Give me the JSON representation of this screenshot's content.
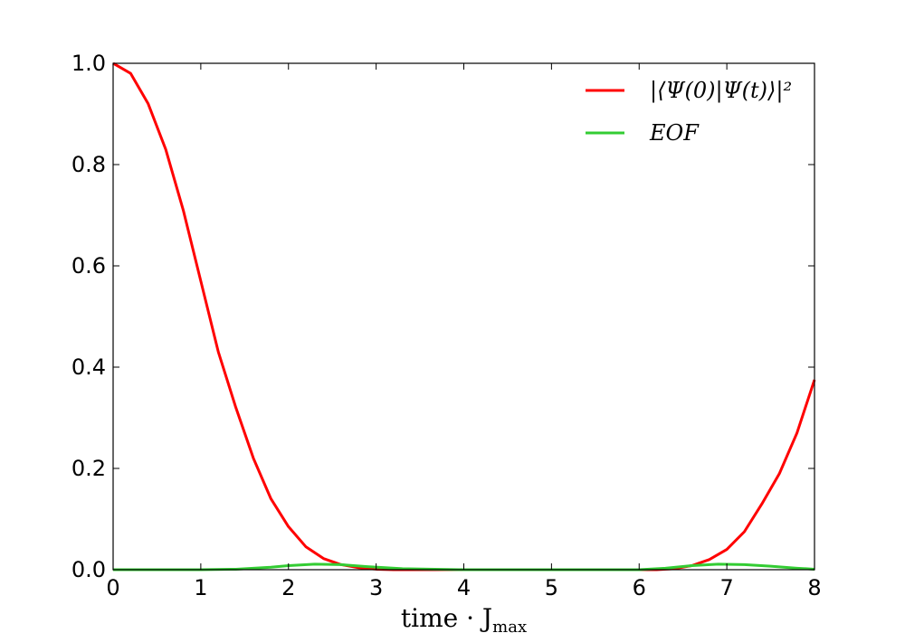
{
  "chart_data": {
    "type": "line",
    "xlabel": "time · J_max",
    "xlabel_main": "time · J",
    "xlabel_sub": "max",
    "ylabel": "",
    "xlim": [
      0,
      8
    ],
    "ylim": [
      0,
      1.0
    ],
    "xticks": [
      "0",
      "1",
      "2",
      "3",
      "4",
      "5",
      "6",
      "7",
      "8"
    ],
    "yticks": [
      "0.0",
      "0.2",
      "0.4",
      "0.6",
      "0.8",
      "1.0"
    ],
    "grid": false,
    "legend_position": "top-right",
    "series": [
      {
        "name": "|⟨Ψ(0)|Ψ(t)⟩|²",
        "color": "#ff0000",
        "x": [
          0,
          0.2,
          0.4,
          0.6,
          0.8,
          1.0,
          1.2,
          1.4,
          1.6,
          1.8,
          2.0,
          2.2,
          2.4,
          2.6,
          2.8,
          3.0,
          3.2,
          3.5,
          4.0,
          4.5,
          5.0,
          5.5,
          6.0,
          6.2,
          6.4,
          6.6,
          6.8,
          7.0,
          7.2,
          7.4,
          7.6,
          7.8,
          8.0
        ],
        "y": [
          1.0,
          0.98,
          0.92,
          0.83,
          0.71,
          0.57,
          0.43,
          0.32,
          0.22,
          0.14,
          0.085,
          0.045,
          0.022,
          0.01,
          0.004,
          0.001,
          0.0,
          0.0,
          0.0,
          0.0,
          0.0,
          0.0,
          0.0,
          0.0,
          0.002,
          0.008,
          0.02,
          0.04,
          0.075,
          0.13,
          0.19,
          0.27,
          0.375
        ]
      },
      {
        "name": "EOF",
        "color": "#33cc33",
        "x": [
          0,
          1.0,
          1.4,
          1.8,
          2.0,
          2.3,
          2.6,
          2.9,
          3.3,
          4.0,
          5.0,
          6.0,
          6.3,
          6.6,
          6.9,
          7.2,
          7.5,
          7.8,
          8.0
        ],
        "y": [
          0.0,
          0.0,
          0.001,
          0.005,
          0.008,
          0.011,
          0.01,
          0.006,
          0.002,
          0.0,
          0.0,
          0.0,
          0.003,
          0.008,
          0.011,
          0.01,
          0.007,
          0.003,
          0.001
        ]
      }
    ]
  }
}
